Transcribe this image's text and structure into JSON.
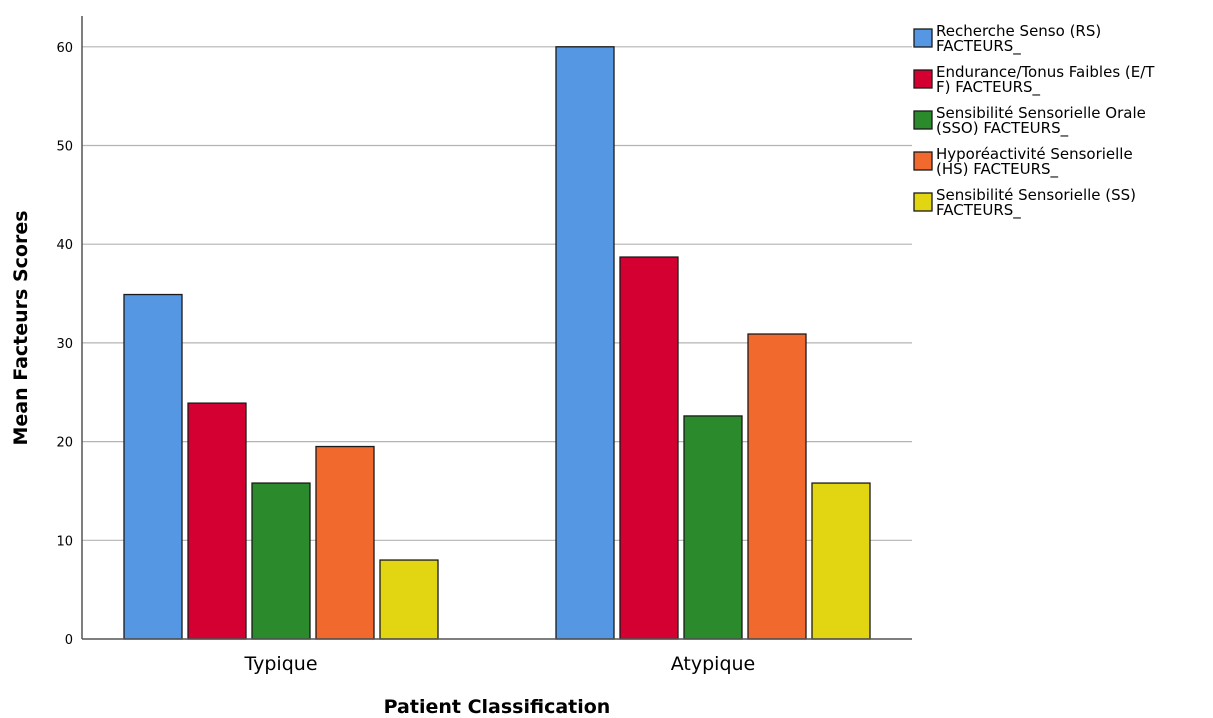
{
  "chart_data": {
    "type": "bar",
    "xlabel": "Patient Classification",
    "ylabel": "Mean Facteurs Scores",
    "ylim": [
      0,
      63
    ],
    "yticks": [
      0,
      10,
      20,
      30,
      40,
      50,
      60
    ],
    "grid": true,
    "legend_position": "right",
    "categories": [
      "Typique",
      "Atypique"
    ],
    "series": [
      {
        "name": [
          "Recherche Senso (RS)",
          "FACTEURS_"
        ],
        "color": "#5597e3",
        "values": [
          34.9,
          60.0
        ]
      },
      {
        "name": [
          "Endurance/Tonus Faibles (E/T",
          "F) FACTEURS_"
        ],
        "color": "#d40031",
        "values": [
          23.9,
          38.7
        ]
      },
      {
        "name": [
          "Sensibilité Sensorielle Orale",
          "(SSO) FACTEURS_"
        ],
        "color": "#2a8a2c",
        "values": [
          15.8,
          22.6
        ]
      },
      {
        "name": [
          "Hyporéactivité Sensorielle",
          "(HS) FACTEURS_"
        ],
        "color": "#f2692d",
        "values": [
          19.5,
          30.9
        ]
      },
      {
        "name": [
          "Sensibilité Sensorielle (SS)",
          "FACTEURS_"
        ],
        "color": "#e2d512",
        "values": [
          8.0,
          15.8
        ]
      }
    ]
  }
}
